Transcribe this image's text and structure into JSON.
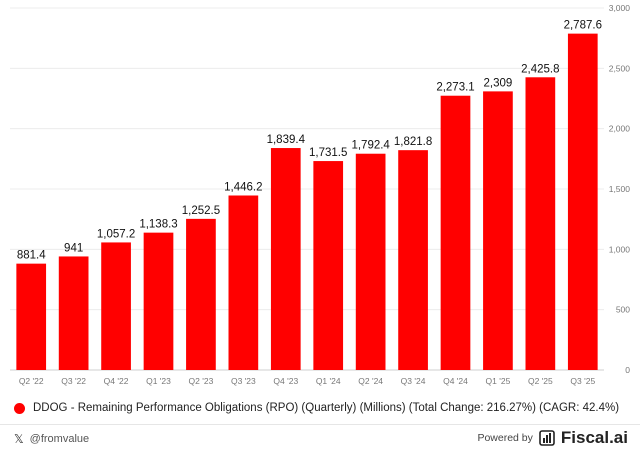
{
  "chart_data": {
    "type": "bar",
    "categories": [
      "Q2 '22",
      "Q3 '22",
      "Q4 '22",
      "Q1 '23",
      "Q2 '23",
      "Q3 '23",
      "Q4 '23",
      "Q1 '24",
      "Q2 '24",
      "Q3 '24",
      "Q4 '24",
      "Q1 '25",
      "Q2 '25",
      "Q3 '25"
    ],
    "values": [
      881.4,
      941,
      1057.2,
      1138.3,
      1252.5,
      1446.2,
      1839.4,
      1731.5,
      1792.4,
      1821.8,
      2273.1,
      2309,
      2425.8,
      2787.6
    ],
    "value_labels": [
      "881.4",
      "941",
      "1,057.2",
      "1,138.3",
      "1,252.5",
      "1,446.2",
      "1,839.4",
      "1,731.5",
      "1,792.4",
      "1,821.8",
      "2,273.1",
      "2,309",
      "2,425.8",
      "2,787.6"
    ],
    "ylim": [
      0,
      3000
    ],
    "yticks": [
      0,
      500,
      1000,
      1500,
      2000,
      2500,
      3000
    ],
    "ytick_labels": [
      "0",
      "500",
      "1,000",
      "1,500",
      "2,000",
      "2,500",
      "3,000"
    ],
    "y_axis_side": "right",
    "grid": true,
    "legend_position": "bottom-left",
    "color": "#ff0000",
    "series": [
      {
        "name": "DDOG - Remaining Performance Obligations (RPO) (Quarterly) (Millions) (Total Change: 216.27%) (CAGR: 42.4%)",
        "values": [
          881.4,
          941,
          1057.2,
          1138.3,
          1252.5,
          1446.2,
          1839.4,
          1731.5,
          1792.4,
          1821.8,
          2273.1,
          2309,
          2425.8,
          2787.6
        ]
      }
    ]
  },
  "legend": {
    "label": "DDOG - Remaining Performance Obligations (RPO) (Quarterly) (Millions) (Total Change: 216.27%) (CAGR: 42.4%)"
  },
  "footer": {
    "handle": "@fromvalue",
    "powered_by": "Powered by",
    "brand": "Fiscal.ai",
    "x_icon": "x-logo-icon"
  }
}
